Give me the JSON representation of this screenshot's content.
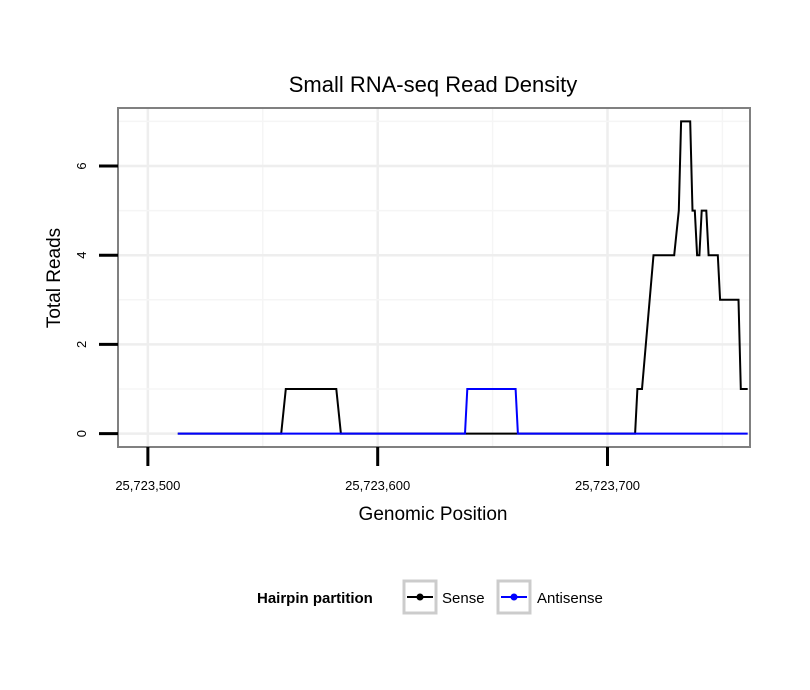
{
  "chart_data": {
    "type": "line",
    "title": "Small RNA-seq Read Density",
    "xlabel": "Genomic Position",
    "ylabel": "Total Reads",
    "xlim": [
      25723487,
      25723762
    ],
    "ylim": [
      -0.3,
      7.3
    ],
    "x_ticks": [
      {
        "value": 25723500,
        "label": "25,723,500"
      },
      {
        "value": 25723600,
        "label": "25,723,600"
      },
      {
        "value": 25723700,
        "label": "25,723,700"
      }
    ],
    "y_ticks": [
      {
        "value": 0,
        "label": "0"
      },
      {
        "value": 2,
        "label": "2"
      },
      {
        "value": 4,
        "label": "4"
      },
      {
        "value": 6,
        "label": "6"
      }
    ],
    "x_minor_gridlines": [
      25723550,
      25723650,
      25723750
    ],
    "y_minor_gridlines": [
      1,
      3,
      5,
      7
    ],
    "grid": true,
    "legend_title": "Hairpin partition",
    "legend_position": "bottom",
    "series": [
      {
        "name": "Sense",
        "color": "#000000",
        "x": [
          25723513,
          25723558,
          25723560,
          25723582,
          25723584,
          25723712,
          25723713,
          25723715,
          25723720,
          25723729,
          25723731,
          25723732,
          25723736,
          25723737,
          25723738,
          25723739,
          25723740,
          25723741,
          25723743,
          25723744,
          25723748,
          25723749,
          25723751,
          25723757,
          25723758,
          25723761
        ],
        "values": [
          0,
          0,
          1,
          1,
          0,
          0,
          1,
          1,
          4,
          4,
          5,
          7,
          7,
          5,
          5,
          4,
          4,
          5,
          5,
          4,
          4,
          3,
          3,
          3,
          1,
          1
        ]
      },
      {
        "name": "Antisense",
        "color": "#0000ff",
        "x": [
          25723513,
          25723638,
          25723639,
          25723660,
          25723661,
          25723761
        ],
        "values": [
          0,
          0,
          1,
          1,
          0,
          0
        ]
      }
    ]
  }
}
